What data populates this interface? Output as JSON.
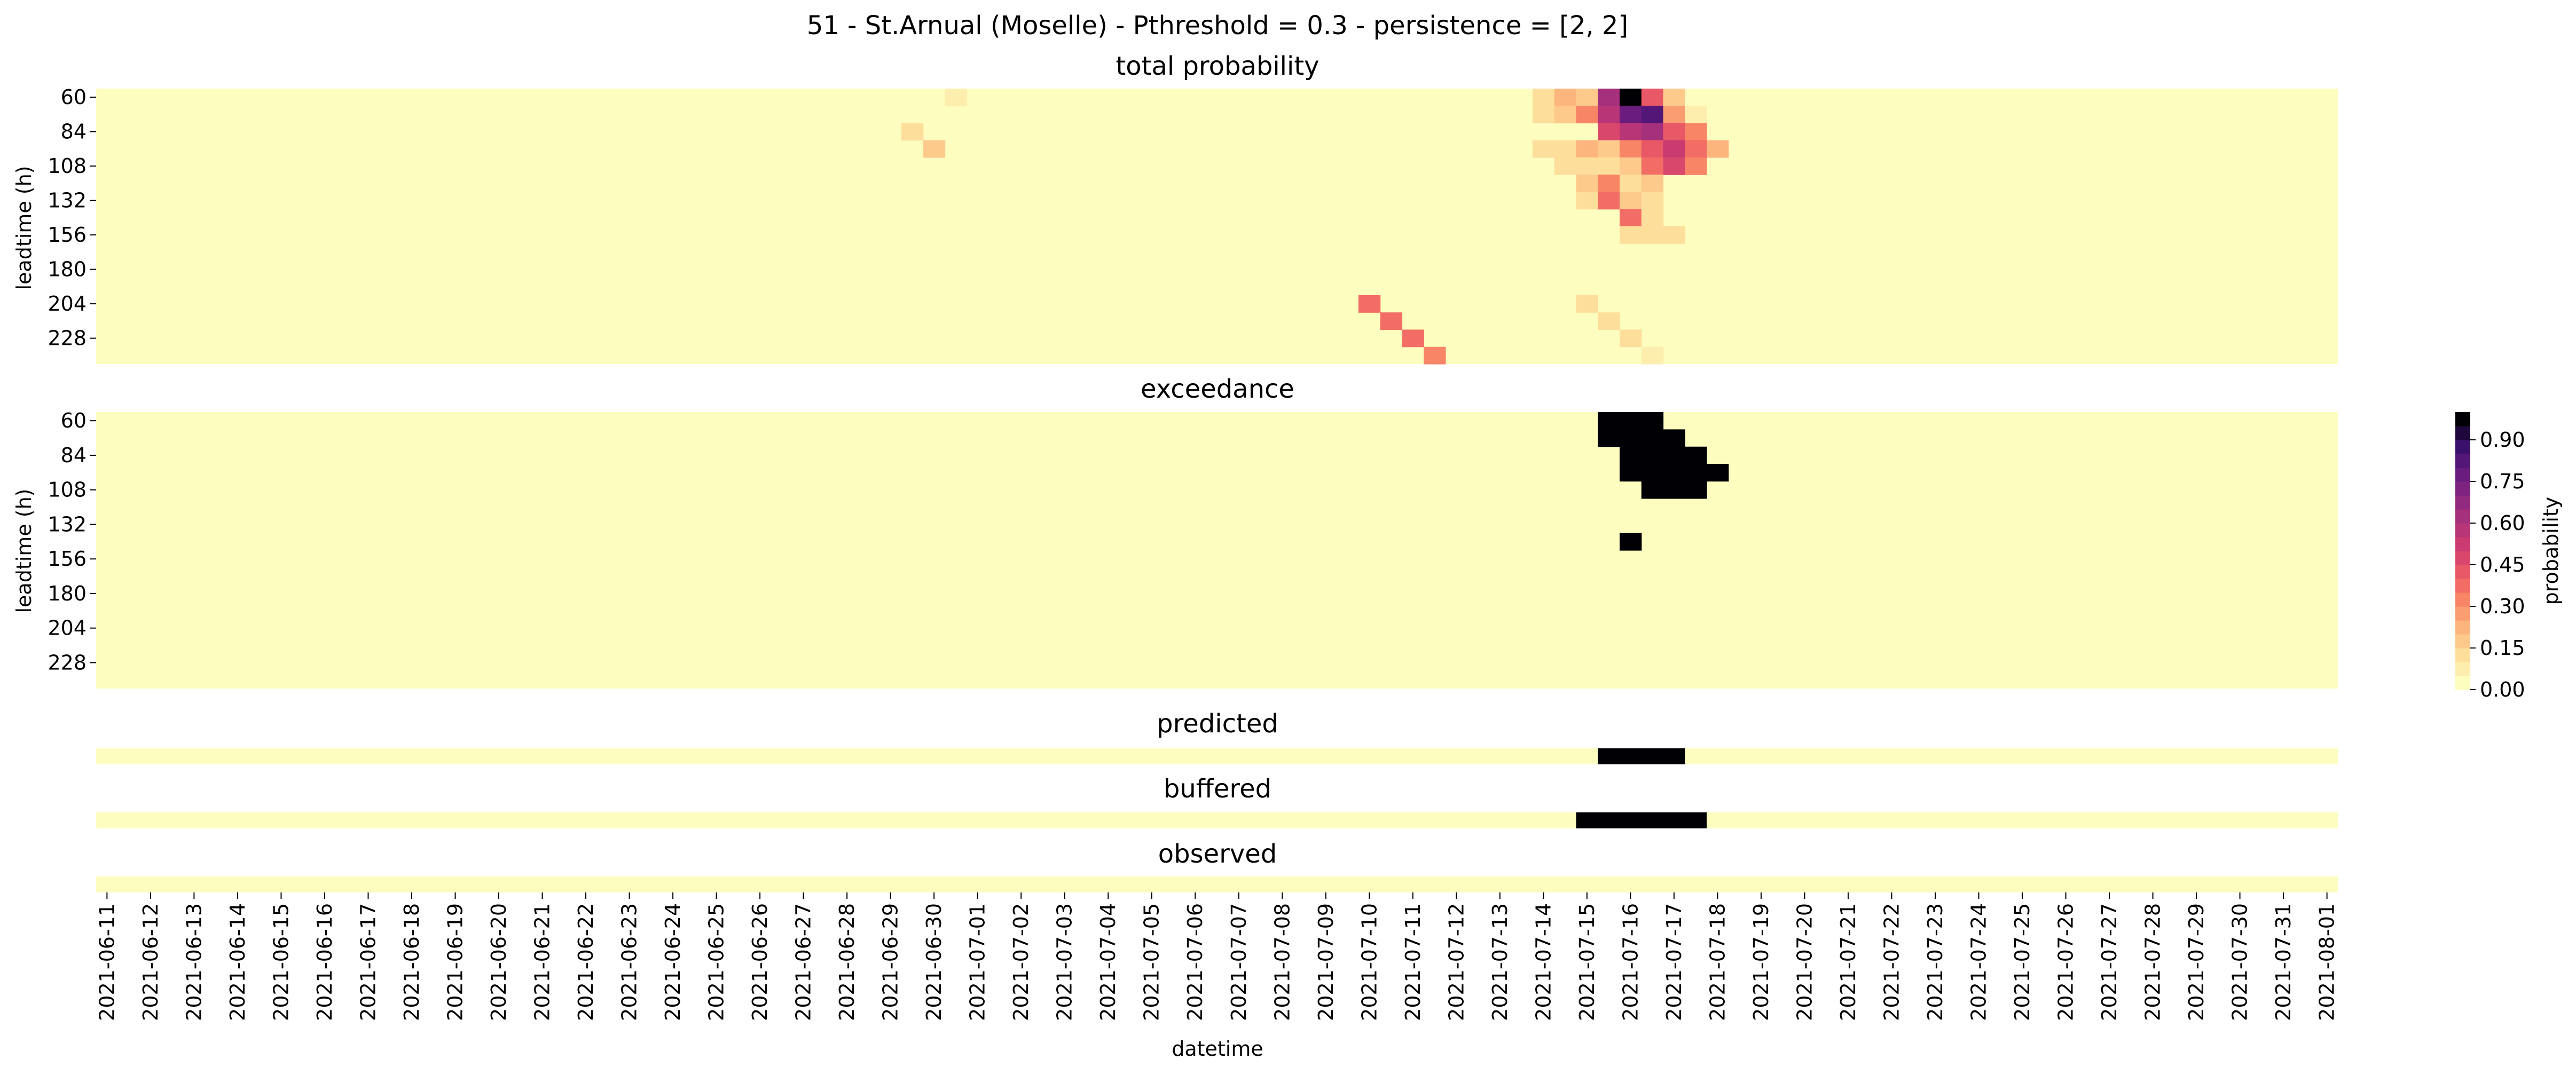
{
  "chart_data": {
    "type": "heatmap",
    "title": "51 - St.Arnual (Moselle) - Pthreshold = 0.3 - persistence = [2, 2]",
    "xlabel": "datetime",
    "colormap": "magma_r",
    "colorbar": {
      "label": "probability",
      "ticks": [
        "0.00",
        "0.15",
        "0.30",
        "0.45",
        "0.60",
        "0.75",
        "0.90"
      ],
      "range": [
        0,
        1
      ],
      "steps": 20
    },
    "x_ticks": [
      "2021-06-11",
      "2021-06-12",
      "2021-06-13",
      "2021-06-14",
      "2021-06-15",
      "2021-06-16",
      "2021-06-17",
      "2021-06-18",
      "2021-06-19",
      "2021-06-20",
      "2021-06-21",
      "2021-06-22",
      "2021-06-23",
      "2021-06-24",
      "2021-06-25",
      "2021-06-26",
      "2021-06-27",
      "2021-06-28",
      "2021-06-29",
      "2021-06-30",
      "2021-07-01",
      "2021-07-02",
      "2021-07-03",
      "2021-07-04",
      "2021-07-05",
      "2021-07-06",
      "2021-07-07",
      "2021-07-08",
      "2021-07-09",
      "2021-07-10",
      "2021-07-11",
      "2021-07-12",
      "2021-07-13",
      "2021-07-14",
      "2021-07-15",
      "2021-07-16",
      "2021-07-17",
      "2021-07-18",
      "2021-07-19",
      "2021-07-20",
      "2021-07-21",
      "2021-07-22",
      "2021-07-23",
      "2021-07-24",
      "2021-07-25",
      "2021-07-26",
      "2021-07-27",
      "2021-07-28",
      "2021-07-29",
      "2021-07-30",
      "2021-07-31",
      "2021-08-01"
    ],
    "time_step_hours": 12,
    "leadtimes": [
      60,
      72,
      84,
      96,
      108,
      120,
      132,
      144,
      156,
      168,
      180,
      192,
      204,
      216,
      228,
      240
    ],
    "y_ticks": [
      "60",
      "84",
      "108",
      "132",
      "156",
      "180",
      "204",
      "228"
    ],
    "panels": [
      {
        "title": "total probability",
        "ylabel": "leadtime (h)",
        "cells": [
          [
            "2021-06-30 12:00",
            60,
            0.05
          ],
          [
            "2021-06-29 12:00",
            84,
            0.1
          ],
          [
            "2021-06-30 00:00",
            96,
            0.15
          ],
          [
            "2021-07-10 00:00",
            204,
            0.35
          ],
          [
            "2021-07-10 12:00",
            216,
            0.35
          ],
          [
            "2021-07-11 00:00",
            228,
            0.35
          ],
          [
            "2021-07-11 12:00",
            240,
            0.3
          ],
          [
            "2021-07-14 00:00",
            60,
            0.1
          ],
          [
            "2021-07-14 12:00",
            60,
            0.2
          ],
          [
            "2021-07-15 00:00",
            60,
            0.15
          ],
          [
            "2021-07-15 12:00",
            60,
            0.6
          ],
          [
            "2021-07-16 00:00",
            60,
            0.95
          ],
          [
            "2021-07-16 12:00",
            60,
            0.4
          ],
          [
            "2021-07-17 00:00",
            60,
            0.15
          ],
          [
            "2021-07-14 00:00",
            72,
            0.1
          ],
          [
            "2021-07-14 12:00",
            72,
            0.15
          ],
          [
            "2021-07-15 00:00",
            72,
            0.3
          ],
          [
            "2021-07-15 12:00",
            72,
            0.55
          ],
          [
            "2021-07-16 00:00",
            72,
            0.75
          ],
          [
            "2021-07-16 12:00",
            72,
            0.8
          ],
          [
            "2021-07-17 00:00",
            72,
            0.25
          ],
          [
            "2021-07-17 12:00",
            72,
            0.05
          ],
          [
            "2021-07-15 12:00",
            84,
            0.45
          ],
          [
            "2021-07-16 00:00",
            84,
            0.55
          ],
          [
            "2021-07-16 12:00",
            84,
            0.6
          ],
          [
            "2021-07-17 00:00",
            84,
            0.4
          ],
          [
            "2021-07-17 12:00",
            84,
            0.3
          ],
          [
            "2021-07-14 00:00",
            96,
            0.1
          ],
          [
            "2021-07-14 12:00",
            96,
            0.1
          ],
          [
            "2021-07-15 00:00",
            96,
            0.2
          ],
          [
            "2021-07-15 12:00",
            96,
            0.15
          ],
          [
            "2021-07-16 00:00",
            96,
            0.3
          ],
          [
            "2021-07-16 12:00",
            96,
            0.4
          ],
          [
            "2021-07-17 00:00",
            96,
            0.5
          ],
          [
            "2021-07-17 12:00",
            96,
            0.35
          ],
          [
            "2021-07-18 00:00",
            96,
            0.2
          ],
          [
            "2021-07-14 12:00",
            108,
            0.1
          ],
          [
            "2021-07-15 00:00",
            108,
            0.1
          ],
          [
            "2021-07-15 12:00",
            108,
            0.1
          ],
          [
            "2021-07-16 00:00",
            108,
            0.15
          ],
          [
            "2021-07-16 12:00",
            108,
            0.35
          ],
          [
            "2021-07-17 00:00",
            108,
            0.45
          ],
          [
            "2021-07-17 12:00",
            108,
            0.3
          ],
          [
            "2021-07-15 00:00",
            120,
            0.15
          ],
          [
            "2021-07-15 12:00",
            120,
            0.3
          ],
          [
            "2021-07-16 00:00",
            120,
            0.1
          ],
          [
            "2021-07-16 12:00",
            120,
            0.15
          ],
          [
            "2021-07-15 00:00",
            132,
            0.1
          ],
          [
            "2021-07-15 12:00",
            132,
            0.35
          ],
          [
            "2021-07-16 00:00",
            132,
            0.15
          ],
          [
            "2021-07-16 12:00",
            132,
            0.1
          ],
          [
            "2021-07-16 00:00",
            144,
            0.35
          ],
          [
            "2021-07-16 12:00",
            144,
            0.1
          ],
          [
            "2021-07-16 00:00",
            156,
            0.1
          ],
          [
            "2021-07-16 12:00",
            156,
            0.1
          ],
          [
            "2021-07-17 00:00",
            156,
            0.1
          ],
          [
            "2021-07-15 00:00",
            204,
            0.1
          ],
          [
            "2021-07-15 12:00",
            216,
            0.1
          ],
          [
            "2021-07-16 00:00",
            228,
            0.1
          ],
          [
            "2021-07-16 12:00",
            240,
            0.05
          ]
        ]
      },
      {
        "title": "exceedance",
        "ylabel": "leadtime (h)",
        "cells": [
          [
            "2021-07-15 12:00",
            60,
            1
          ],
          [
            "2021-07-16 00:00",
            60,
            1
          ],
          [
            "2021-07-16 12:00",
            60,
            1
          ],
          [
            "2021-07-15 12:00",
            72,
            1
          ],
          [
            "2021-07-16 00:00",
            72,
            1
          ],
          [
            "2021-07-16 12:00",
            72,
            1
          ],
          [
            "2021-07-17 00:00",
            72,
            1
          ],
          [
            "2021-07-16 00:00",
            84,
            1
          ],
          [
            "2021-07-16 12:00",
            84,
            1
          ],
          [
            "2021-07-17 00:00",
            84,
            1
          ],
          [
            "2021-07-17 12:00",
            84,
            1
          ],
          [
            "2021-07-16 00:00",
            96,
            1
          ],
          [
            "2021-07-16 12:00",
            96,
            1
          ],
          [
            "2021-07-17 00:00",
            96,
            1
          ],
          [
            "2021-07-17 12:00",
            96,
            1
          ],
          [
            "2021-07-18 00:00",
            96,
            1
          ],
          [
            "2021-07-16 12:00",
            108,
            1
          ],
          [
            "2021-07-17 00:00",
            108,
            1
          ],
          [
            "2021-07-17 12:00",
            108,
            1
          ],
          [
            "2021-07-16 00:00",
            144,
            1
          ]
        ]
      }
    ],
    "strips": [
      {
        "title": "predicted",
        "from": "2021-07-15 12:00",
        "to": "2021-07-17 12:00",
        "value": 1
      },
      {
        "title": "buffered",
        "from": "2021-07-15 00:00",
        "to": "2021-07-18 00:00",
        "value": 1
      },
      {
        "title": "observed",
        "from": null,
        "to": null,
        "value": 0
      }
    ]
  }
}
